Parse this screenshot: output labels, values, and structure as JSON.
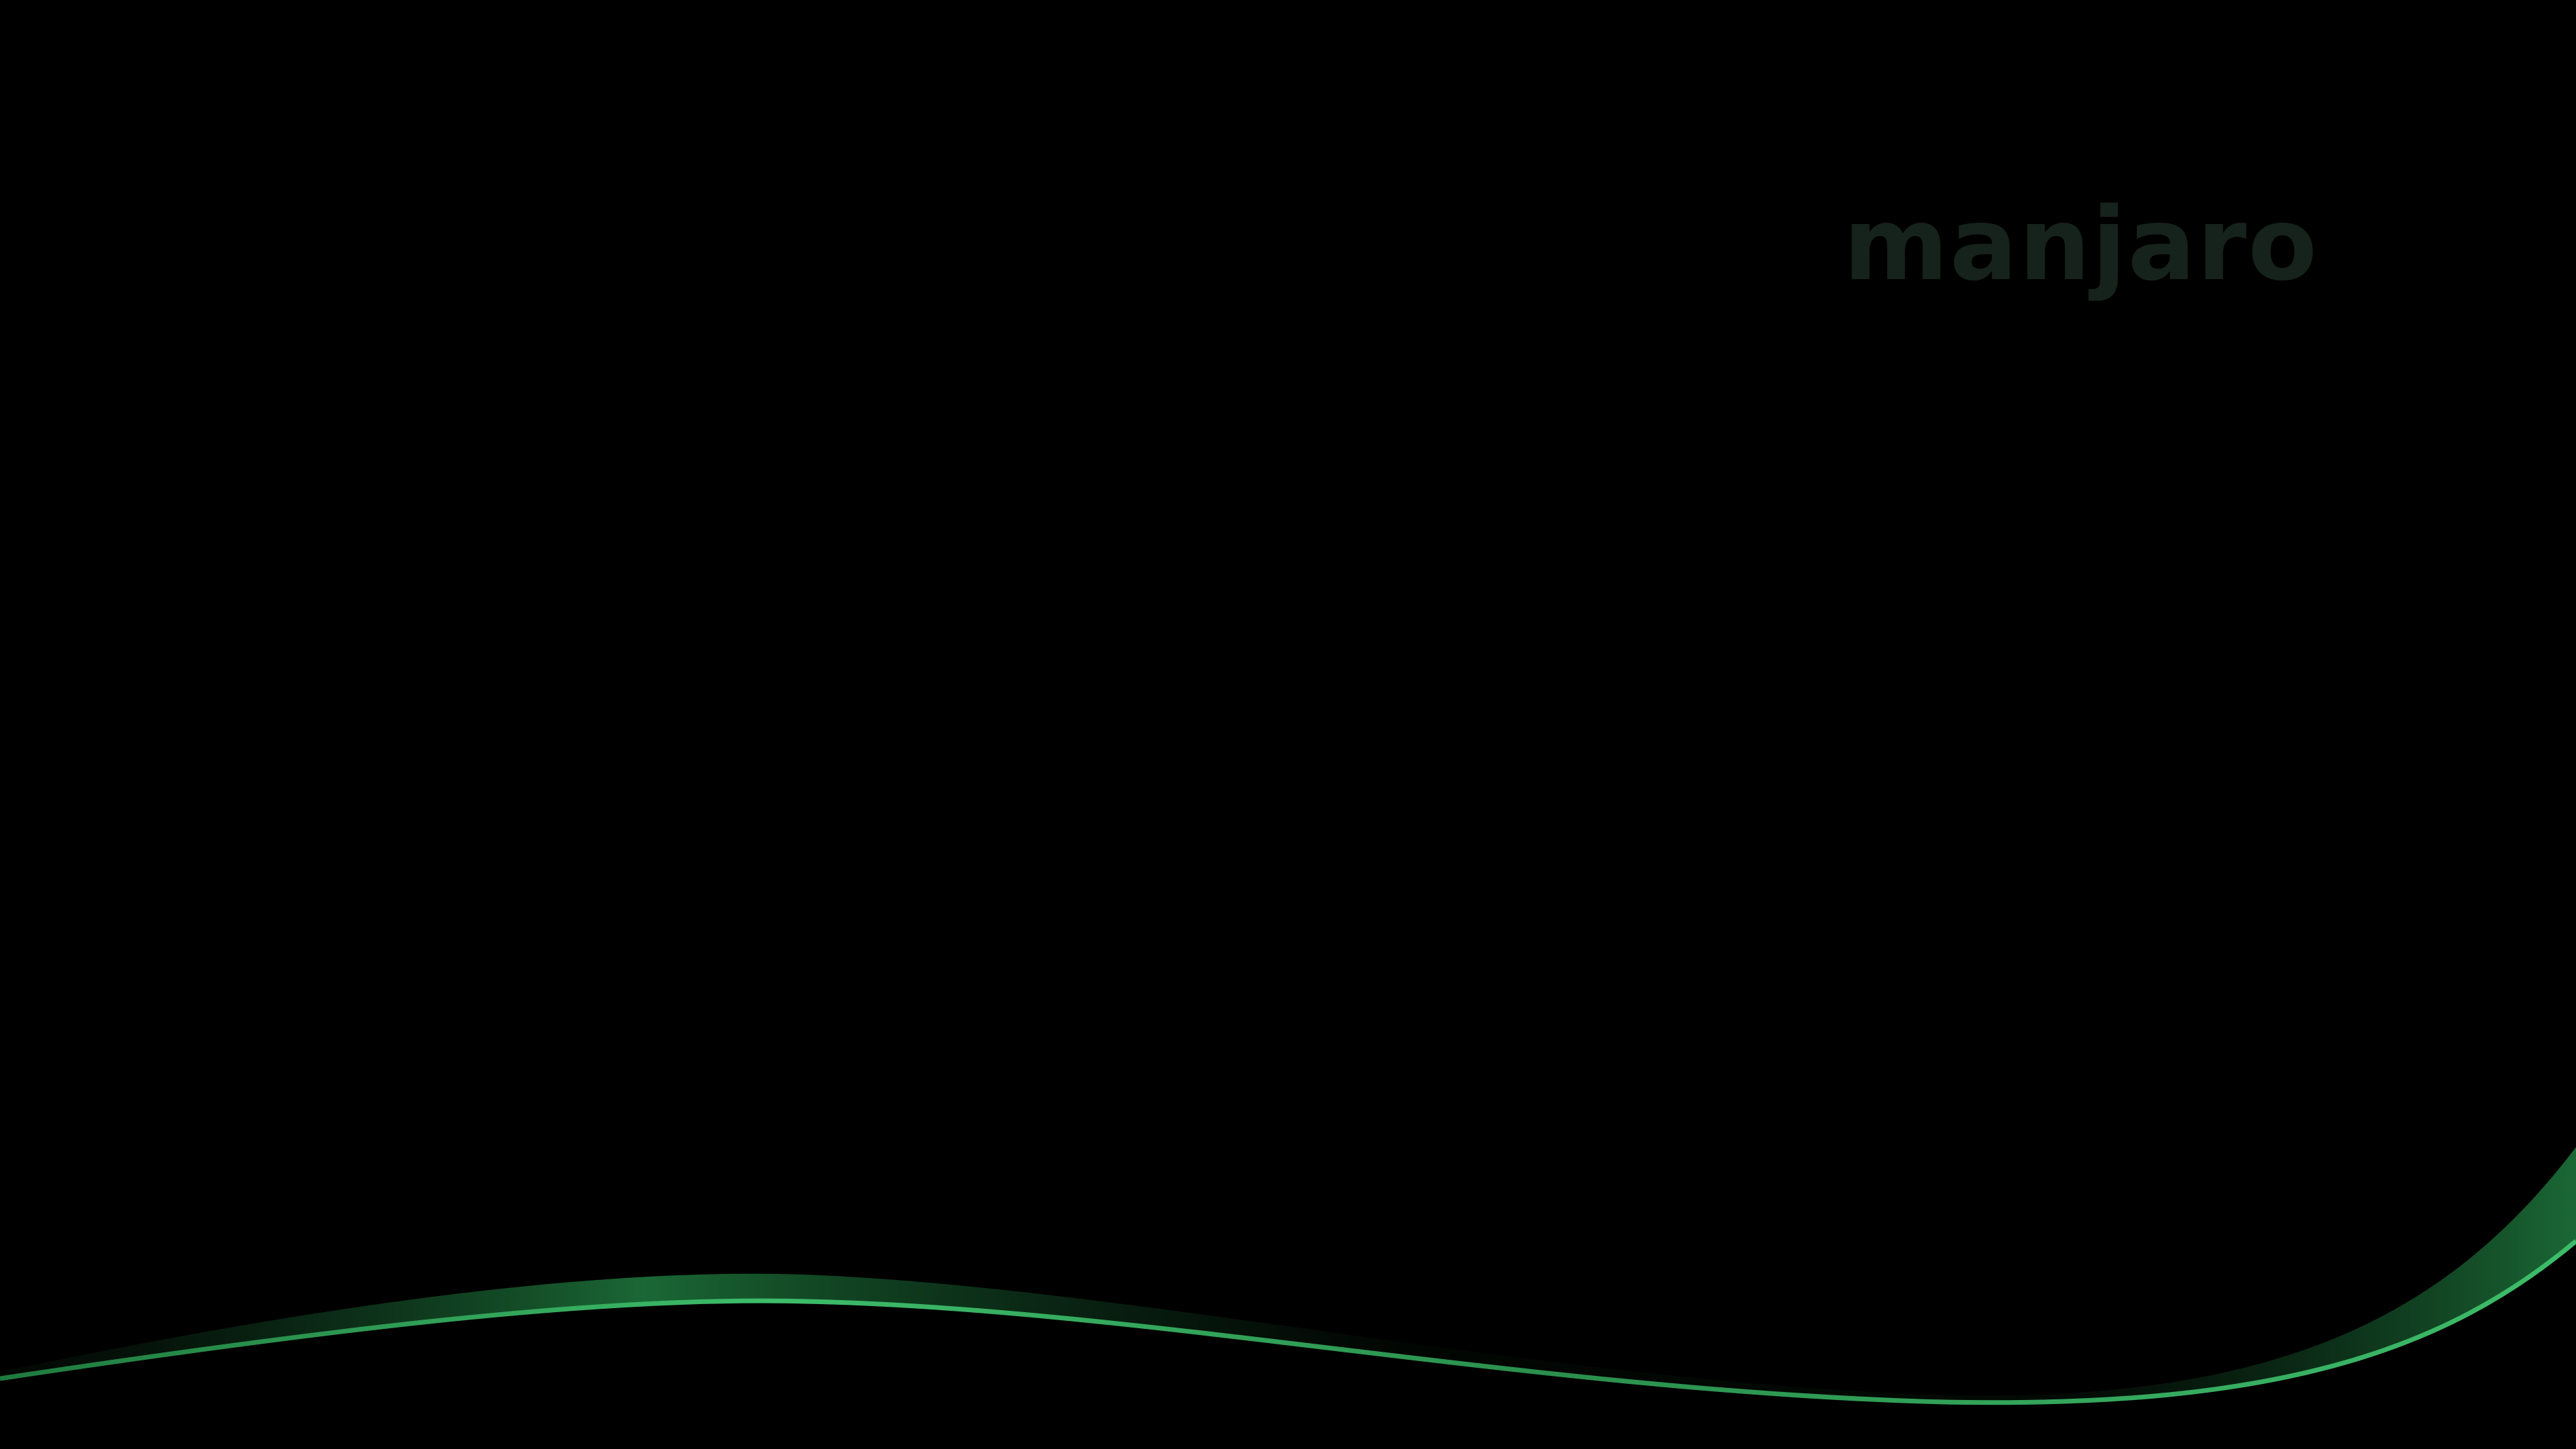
{
  "wallpaper": {
    "brand_text": "manjaro",
    "background_color": "#000000",
    "wordmark_color": "#16231c",
    "wave_colors": {
      "bright": "#3dbd6a",
      "mid": "#1f7a3e",
      "dark": "#0b2a16"
    }
  }
}
